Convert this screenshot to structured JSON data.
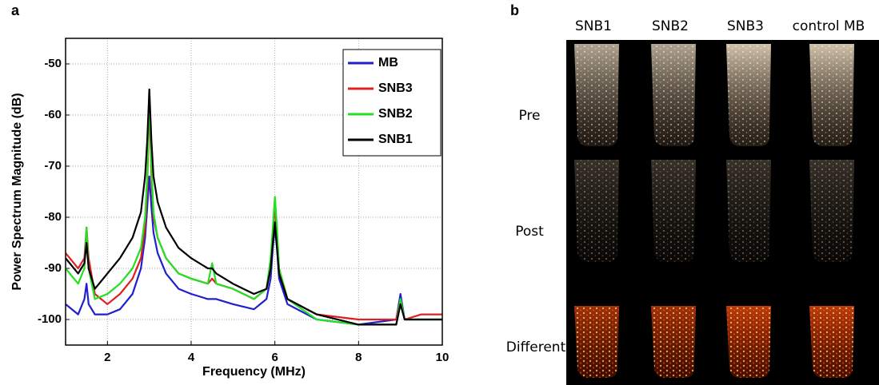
{
  "chart_data": {
    "type": "line",
    "panel_label": "a",
    "xlabel": "Frequency (MHz)",
    "ylabel": "Power Spectrum Magnitude (dB)",
    "xlim": [
      1,
      10
    ],
    "ylim": [
      -105,
      -45
    ],
    "xticks": [
      2,
      4,
      6,
      8,
      10
    ],
    "yticks": [
      -100,
      -90,
      -80,
      -70,
      -60,
      -50
    ],
    "grid": true,
    "legend": "upper right",
    "x": [
      1,
      1.3,
      1.45,
      1.5,
      1.55,
      1.7,
      2,
      2.3,
      2.6,
      2.8,
      2.9,
      2.95,
      3,
      3.05,
      3.1,
      3.2,
      3.4,
      3.7,
      4,
      4.4,
      4.5,
      4.6,
      5,
      5.5,
      5.8,
      5.9,
      5.95,
      6,
      6.05,
      6.1,
      6.3,
      7,
      8,
      8.9,
      9,
      9.1,
      9.5,
      10
    ],
    "series": [
      {
        "name": "MB",
        "color": "#1f1fd0",
        "values": [
          -97,
          -99,
          -96,
          -93,
          -97,
          -99,
          -99,
          -98,
          -95,
          -90,
          -84,
          -78,
          -72,
          -78,
          -83,
          -87,
          -91,
          -94,
          -95,
          -96,
          -96,
          -96,
          -97,
          -98,
          -96,
          -92,
          -86,
          -82,
          -86,
          -92,
          -97,
          -100,
          -101,
          -100,
          -95,
          -100,
          -100,
          -100
        ]
      },
      {
        "name": "SNB3",
        "color": "#e02020",
        "values": [
          -87,
          -90,
          -88,
          -82,
          -88,
          -95,
          -97,
          -95,
          -92,
          -88,
          -82,
          -74,
          -57,
          -72,
          -80,
          -84,
          -88,
          -91,
          -92,
          -93,
          -92,
          -93,
          -94,
          -96,
          -94,
          -90,
          -84,
          -77,
          -84,
          -90,
          -96,
          -99,
          -100,
          -100,
          -96,
          -100,
          -99,
          -99
        ]
      },
      {
        "name": "SNB2",
        "color": "#22e022",
        "values": [
          -90,
          -93,
          -90,
          -82,
          -90,
          -96,
          -95,
          -93,
          -90,
          -86,
          -80,
          -72,
          -55,
          -70,
          -79,
          -84,
          -88,
          -91,
          -92,
          -93,
          -89,
          -93,
          -94,
          -96,
          -94,
          -88,
          -82,
          -76,
          -82,
          -90,
          -96,
          -100,
          -101,
          -101,
          -96,
          -100,
          -100,
          -100
        ]
      },
      {
        "name": "SNB1",
        "color": "#000000",
        "values": [
          -88,
          -91,
          -89,
          -85,
          -90,
          -94,
          -91,
          -88,
          -84,
          -79,
          -72,
          -65,
          -55,
          -65,
          -72,
          -77,
          -82,
          -86,
          -88,
          -90,
          -90,
          -91,
          -93,
          -95,
          -94,
          -90,
          -85,
          -81,
          -86,
          -91,
          -96,
          -99,
          -101,
          -101,
          -97,
          -100,
          -100,
          -100
        ]
      }
    ]
  },
  "panel_b": {
    "label": "b",
    "columns": [
      "SNB1",
      "SNB2",
      "SNB3",
      "control MB"
    ],
    "rows": [
      "Pre",
      "Post",
      "Different"
    ]
  }
}
